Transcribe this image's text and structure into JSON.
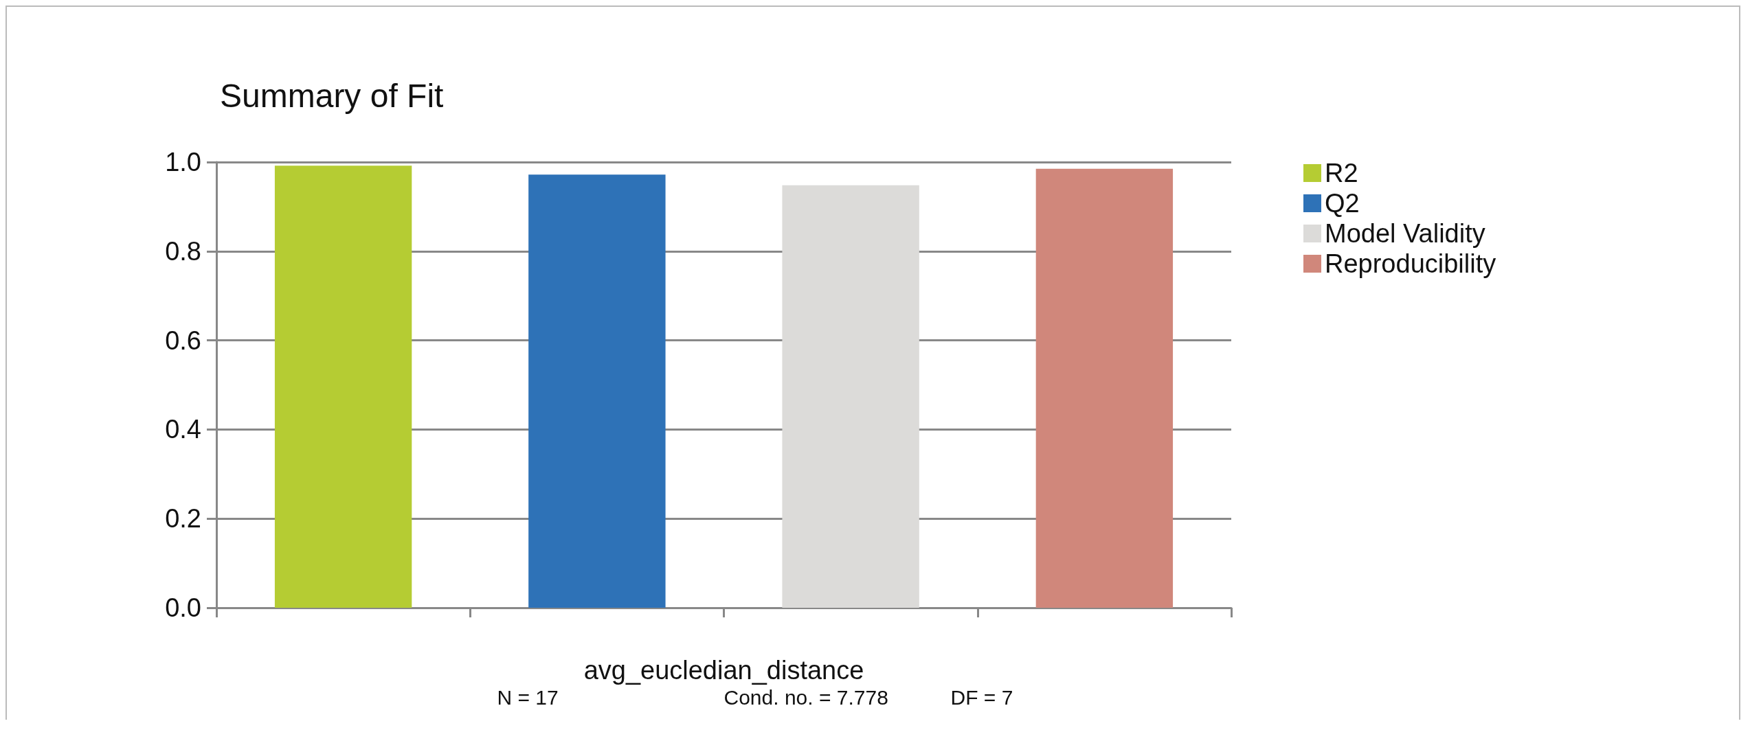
{
  "chart_data": {
    "type": "bar",
    "title": "Summary of Fit",
    "xlabel": "avg_eucledian_distance",
    "annotations": [
      "N = 17",
      "Cond. no. = 7.778",
      "DF = 7"
    ],
    "categories": [
      null,
      null,
      null,
      null
    ],
    "stacked": true,
    "series": [
      {
        "name": "R2",
        "color": "#b5cc33",
        "values": [
          0.992,
          null,
          null,
          null
        ]
      },
      {
        "name": "Q2",
        "color": "#2e72b7",
        "values": [
          null,
          0.972,
          null,
          null
        ]
      },
      {
        "name": "Model Validity",
        "color": "#dcdbd9",
        "values": [
          null,
          null,
          0.948,
          null
        ]
      },
      {
        "name": "Reproducibility",
        "color": "#d0877b",
        "values": [
          null,
          null,
          null,
          0.985
        ]
      }
    ],
    "ylim": [
      0,
      1
    ],
    "yticks": [
      {
        "value": 0,
        "label": "0.0"
      },
      0.2,
      0.4,
      0.6,
      0.8,
      {
        "value": 1,
        "label": "1.0"
      }
    ],
    "grid": "y",
    "legend": "top right"
  }
}
